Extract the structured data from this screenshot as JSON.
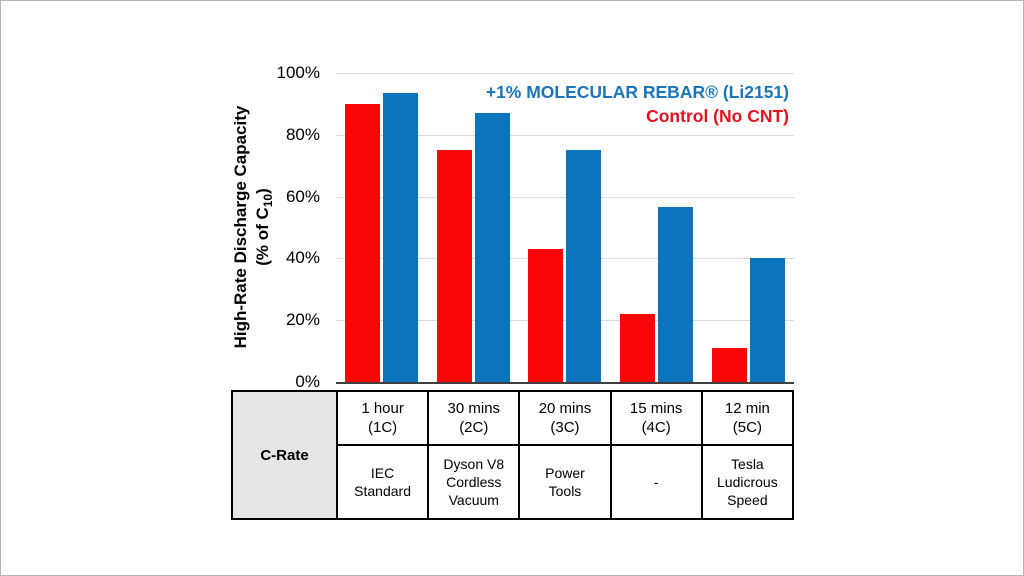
{
  "chart_data": {
    "type": "bar",
    "categories": [
      "1 hour (1C)",
      "30 mins (2C)",
      "20 mins (3C)",
      "15 mins (4C)",
      "12 min (5C)"
    ],
    "series": [
      {
        "key": "control",
        "name": "Control (No CNT)",
        "color": "#fb0606",
        "values": [
          90,
          75,
          43,
          22,
          11
        ]
      },
      {
        "key": "rebar",
        "name": "+1% MOLECULAR REBAR® (Li2151)",
        "color": "#0b74bc",
        "values": [
          93.5,
          87,
          75,
          56.5,
          40
        ]
      }
    ],
    "xlabel": "C-Rate",
    "ylabel": "High-Rate Discharge Capacity (% of C10)",
    "ylim": [
      0,
      100
    ],
    "ytick_labels": [
      "100%",
      "80%",
      "60%",
      "40%",
      "20%",
      "0%"
    ],
    "grid": "horizontal gridlines at 20% intervals",
    "legend_position": "top-right inside plot"
  },
  "y_axis": {
    "title_line1": "High-Rate Discharge Capacity",
    "title_line2_prefix": "(% of C",
    "title_line2_sub": "10",
    "title_line2_suffix": ")",
    "tick_labels": [
      "100%",
      "80%",
      "60%",
      "40%",
      "20%",
      "0%"
    ]
  },
  "legend": {
    "entries": [
      {
        "label": "+1% MOLECULAR REBAR® (Li2151)",
        "color": "#1b75bc"
      },
      {
        "label": "Control (No CNT)",
        "color": "#e2131f"
      }
    ]
  },
  "table": {
    "header": "C-Rate",
    "columns": [
      {
        "rate": "1 hour\n(1C)",
        "example": "IEC\nStandard"
      },
      {
        "rate": "30 mins\n(2C)",
        "example": "Dyson V8\nCordless\nVacuum"
      },
      {
        "rate": "20 mins\n(3C)",
        "example": "Power\nTools"
      },
      {
        "rate": "15 mins\n(4C)",
        "example": "-"
      },
      {
        "rate": "12 min\n(5C)",
        "example": "Tesla\nLudicrous\nSpeed"
      }
    ]
  },
  "colors": {
    "bar_red": "#fb0606",
    "bar_blue": "#0b74bc",
    "gridline": "#d9d9d9",
    "axis_line": "#3f3f3f",
    "table_header_bg": "#e7e6e6",
    "slide_border": "#b3b3b3"
  }
}
